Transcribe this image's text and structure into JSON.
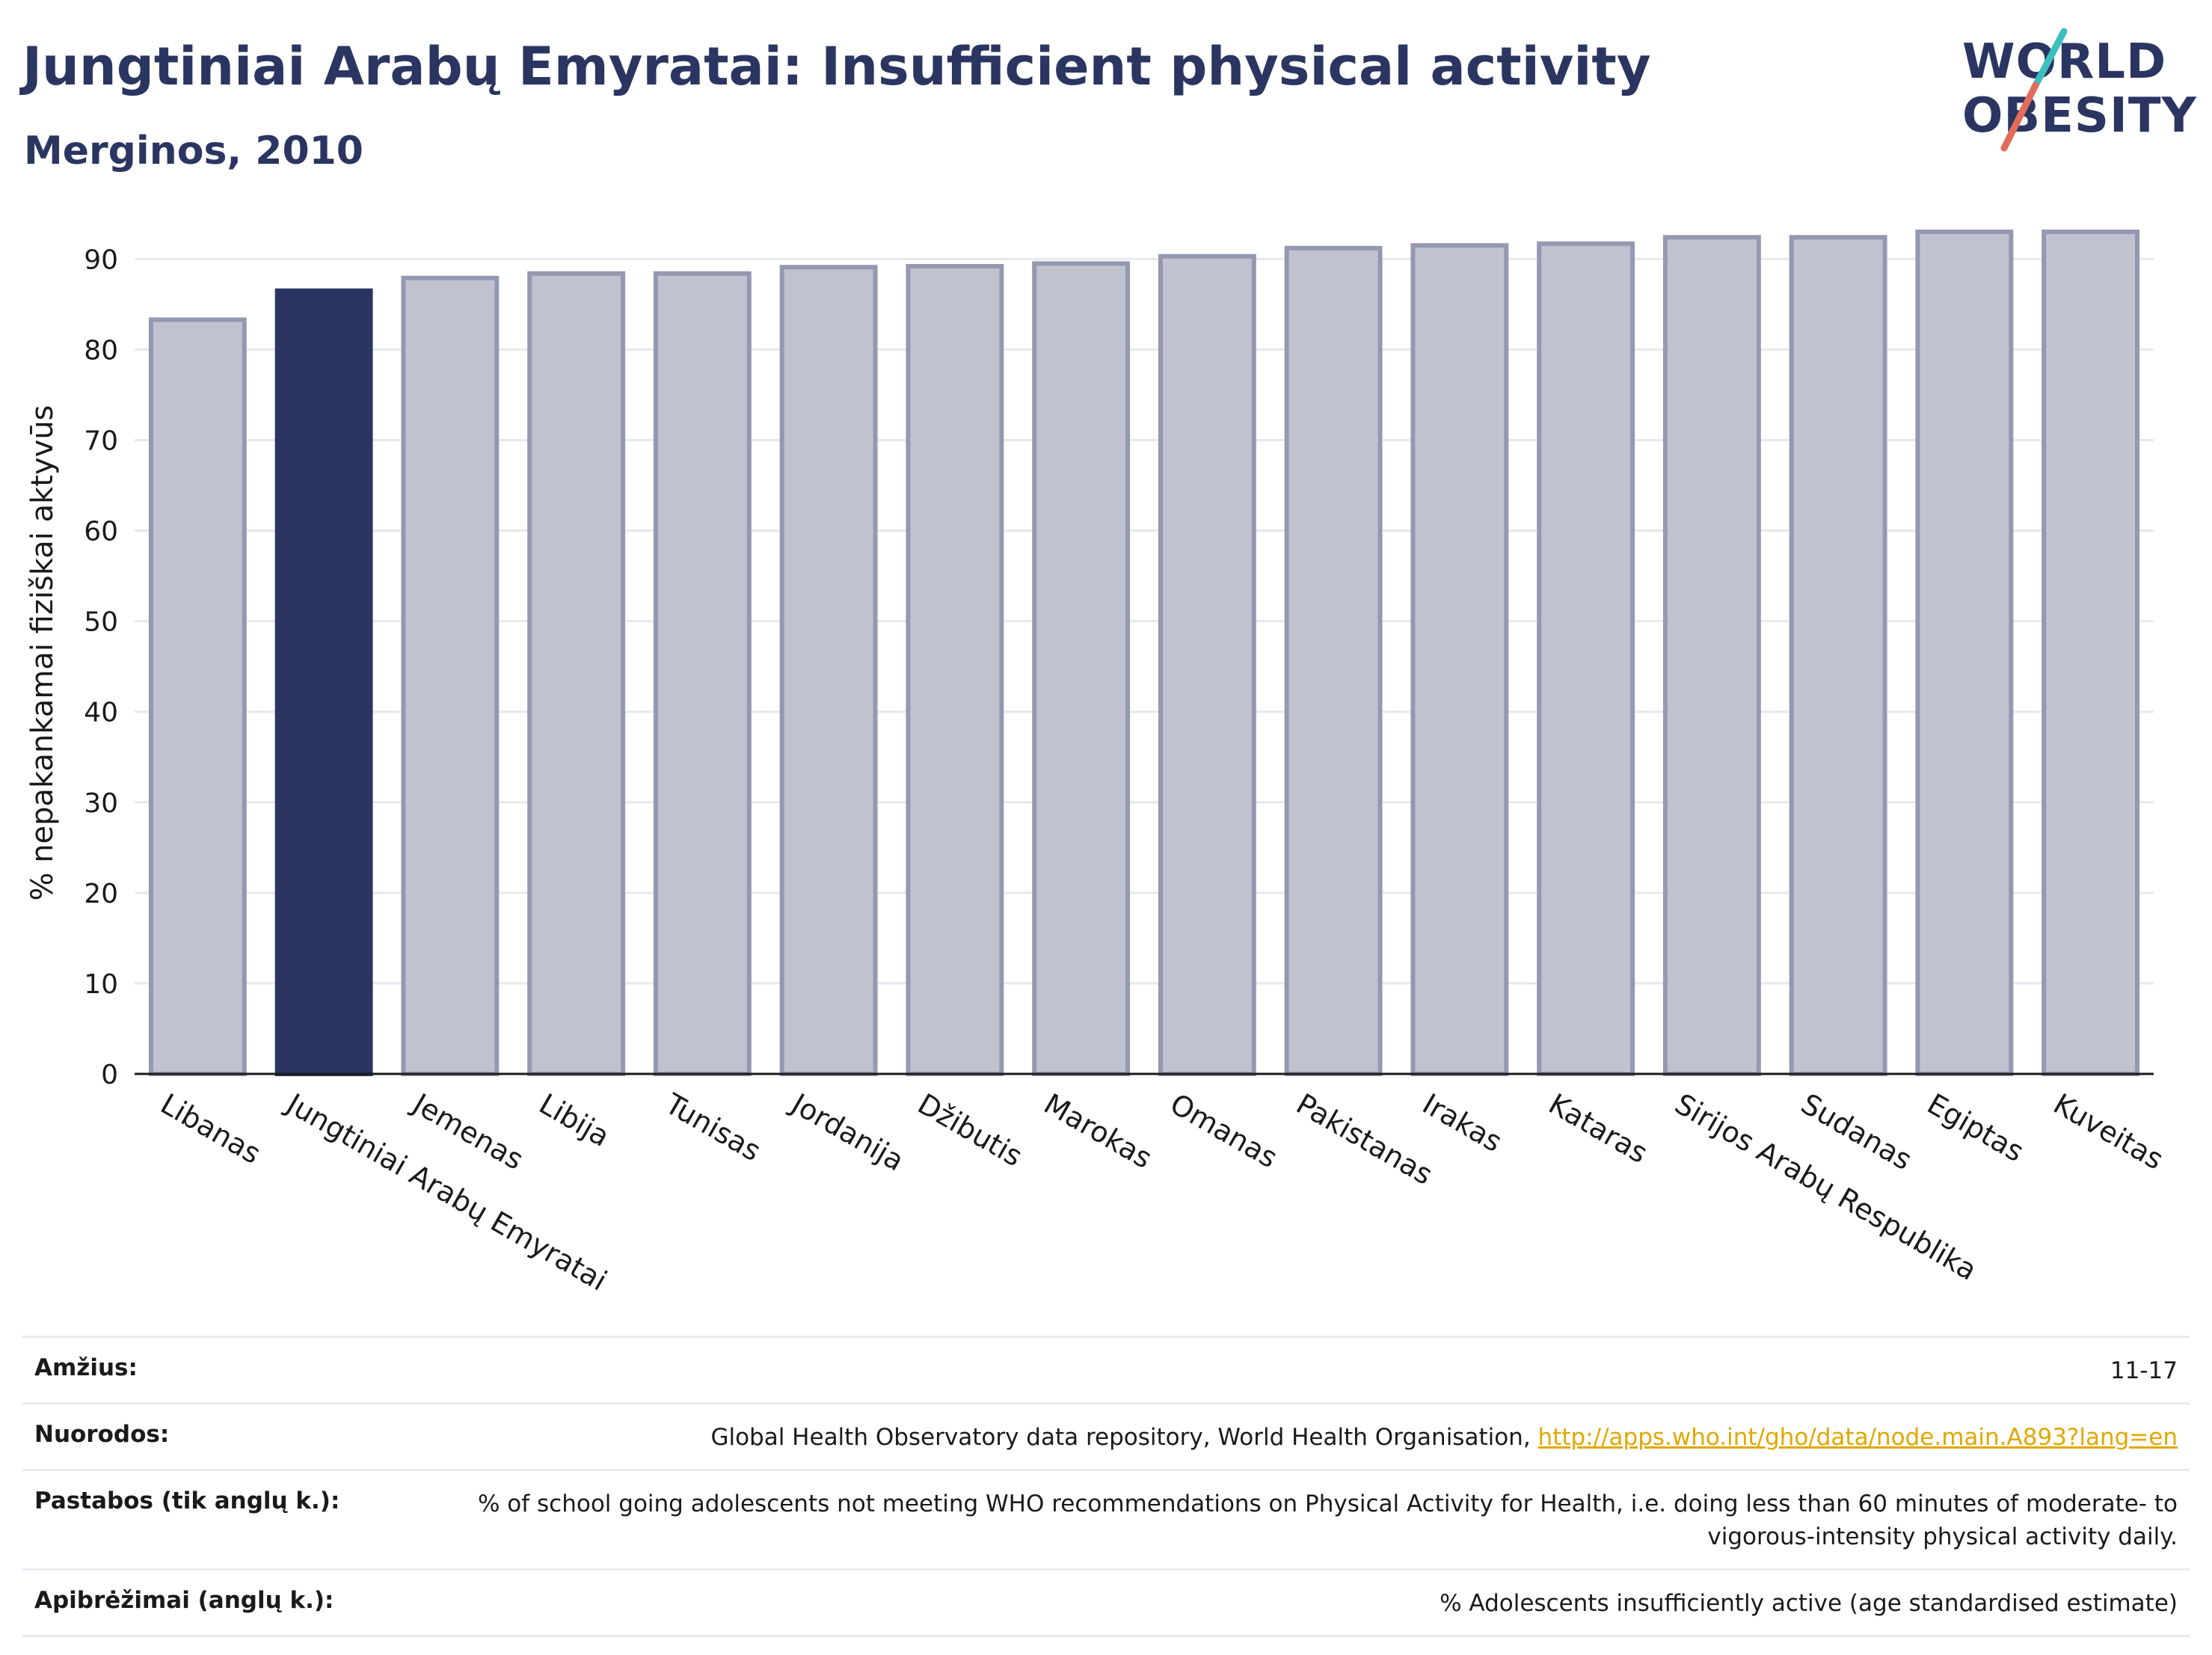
{
  "header": {
    "title": "Jungtiniai Arabų Emyratai: Insufficient physical activity",
    "subtitle": "Merginos, 2010"
  },
  "logo": {
    "line1": "WORLD",
    "line2": "OBESITY"
  },
  "colors": {
    "highlight": "#2b3561",
    "bar": "#bfc3d0",
    "bar_border": "#9498b0",
    "accent_teal": "#3bbfbf",
    "accent_red": "#e26b5a"
  },
  "chart_data": {
    "type": "bar",
    "title": "",
    "xlabel": "",
    "ylabel": "% nepakankamai fiziškai aktyvūs",
    "ylim": [
      0,
      93
    ],
    "yticks": [
      0,
      10,
      20,
      30,
      40,
      50,
      60,
      70,
      80,
      90
    ],
    "grid": true,
    "highlight_category": "Jungtiniai Arabų Emyratai",
    "categories": [
      "Libanas",
      "Jungtiniai Arabų Emyratai",
      "Jemenas",
      "Libija",
      "Tunisas",
      "Jordanija",
      "Džibutis",
      "Marokas",
      "Omanas",
      "Pakistanas",
      "Irakas",
      "Kataras",
      "Sirijos Arabų Respublika",
      "Sudanas",
      "Egiptas",
      "Kuveitas"
    ],
    "values": [
      83.3,
      86.5,
      87.9,
      88.4,
      88.4,
      89.1,
      89.2,
      89.5,
      90.3,
      91.2,
      91.5,
      91.7,
      92.4,
      92.4,
      93.0,
      93.0
    ]
  },
  "footer": {
    "age_label": "Amžius:",
    "age_value": "11-17",
    "refs_label": "Nuorodos:",
    "refs_text": "Global Health Observatory data repository, World Health Organisation, ",
    "refs_link": "http://apps.who.int/gho/data/node.main.A893?lang=en",
    "notes_label": "Pastabos (tik anglų k.):",
    "notes_text": "% of school going adolescents not meeting WHO recommendations on Physical Activity for Health, i.e. doing less than 60 minutes of moderate- to vigorous-intensity physical activity daily.",
    "defs_label": "Apibrėžimai (anglų k.):",
    "defs_text": "% Adolescents insufficiently active (age standardised estimate)"
  }
}
